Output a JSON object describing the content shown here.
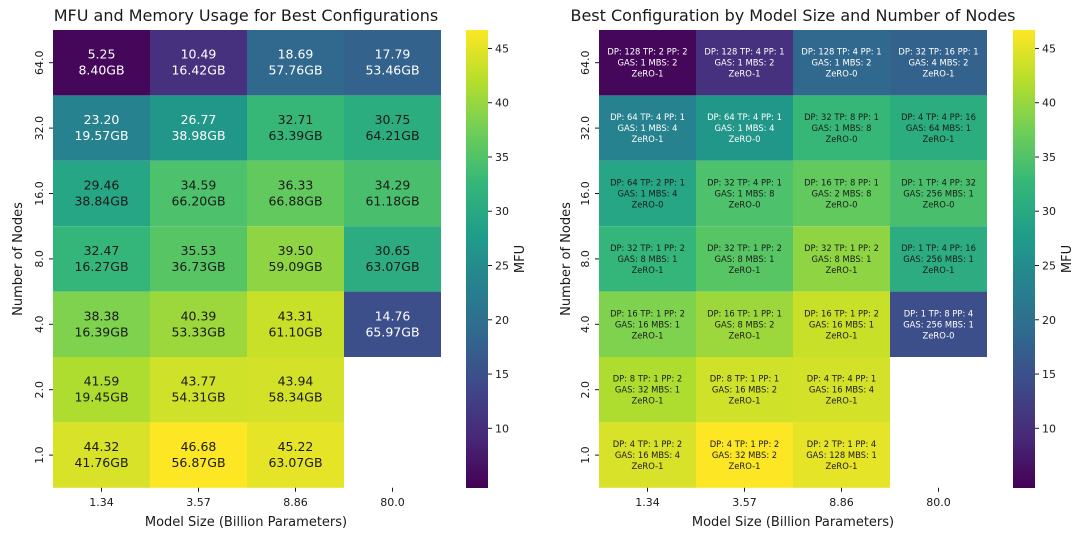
{
  "colors": {
    "viridis": [
      "#440154",
      "#482878",
      "#3e4989",
      "#31688e",
      "#26828e",
      "#1f9e89",
      "#35b779",
      "#6ece58",
      "#b5de2b",
      "#fde725"
    ],
    "text_dark": "#1a1a1a",
    "text_light": "#ffffff"
  },
  "chart_data": [
    {
      "type": "heatmap",
      "title": "MFU and Memory Usage for Best Configurations",
      "xlabel": "Model Size (Billion Parameters)",
      "ylabel": "Number of Nodes",
      "x_categories": [
        "1.34",
        "3.57",
        "8.86",
        "80.0"
      ],
      "y_categories": [
        "64.0",
        "32.0",
        "16.0",
        "8.0",
        "4.0",
        "2.0",
        "1.0"
      ],
      "colorbar": {
        "label": "MFU",
        "range": [
          4.5,
          46.7
        ],
        "ticks": [
          "10",
          "15",
          "20",
          "25",
          "30",
          "35",
          "40",
          "45"
        ]
      },
      "cells": [
        {
          "row": 0,
          "col": 0,
          "mfu": 5.25,
          "line1": "5.25",
          "line2": "8.40GB"
        },
        {
          "row": 0,
          "col": 1,
          "mfu": 10.49,
          "line1": "10.49",
          "line2": "16.42GB"
        },
        {
          "row": 0,
          "col": 2,
          "mfu": 18.69,
          "line1": "18.69",
          "line2": "57.76GB"
        },
        {
          "row": 0,
          "col": 3,
          "mfu": 17.79,
          "line1": "17.79",
          "line2": "53.46GB"
        },
        {
          "row": 1,
          "col": 0,
          "mfu": 23.2,
          "line1": "23.20",
          "line2": "19.57GB"
        },
        {
          "row": 1,
          "col": 1,
          "mfu": 26.77,
          "line1": "26.77",
          "line2": "38.98GB"
        },
        {
          "row": 1,
          "col": 2,
          "mfu": 32.71,
          "line1": "32.71",
          "line2": "63.39GB"
        },
        {
          "row": 1,
          "col": 3,
          "mfu": 30.75,
          "line1": "30.75",
          "line2": "64.21GB"
        },
        {
          "row": 2,
          "col": 0,
          "mfu": 29.46,
          "line1": "29.46",
          "line2": "38.84GB"
        },
        {
          "row": 2,
          "col": 1,
          "mfu": 34.59,
          "line1": "34.59",
          "line2": "66.20GB"
        },
        {
          "row": 2,
          "col": 2,
          "mfu": 36.33,
          "line1": "36.33",
          "line2": "66.88GB"
        },
        {
          "row": 2,
          "col": 3,
          "mfu": 34.29,
          "line1": "34.29",
          "line2": "61.18GB"
        },
        {
          "row": 3,
          "col": 0,
          "mfu": 32.47,
          "line1": "32.47",
          "line2": "16.27GB"
        },
        {
          "row": 3,
          "col": 1,
          "mfu": 35.53,
          "line1": "35.53",
          "line2": "36.73GB"
        },
        {
          "row": 3,
          "col": 2,
          "mfu": 39.5,
          "line1": "39.50",
          "line2": "59.09GB"
        },
        {
          "row": 3,
          "col": 3,
          "mfu": 30.65,
          "line1": "30.65",
          "line2": "63.07GB"
        },
        {
          "row": 4,
          "col": 0,
          "mfu": 38.38,
          "line1": "38.38",
          "line2": "16.39GB"
        },
        {
          "row": 4,
          "col": 1,
          "mfu": 40.39,
          "line1": "40.39",
          "line2": "53.33GB"
        },
        {
          "row": 4,
          "col": 2,
          "mfu": 43.31,
          "line1": "43.31",
          "line2": "61.10GB"
        },
        {
          "row": 4,
          "col": 3,
          "mfu": 14.76,
          "line1": "14.76",
          "line2": "65.97GB"
        },
        {
          "row": 5,
          "col": 0,
          "mfu": 41.59,
          "line1": "41.59",
          "line2": "19.45GB"
        },
        {
          "row": 5,
          "col": 1,
          "mfu": 43.77,
          "line1": "43.77",
          "line2": "54.31GB"
        },
        {
          "row": 5,
          "col": 2,
          "mfu": 43.94,
          "line1": "43.94",
          "line2": "58.34GB"
        },
        {
          "row": 6,
          "col": 0,
          "mfu": 44.32,
          "line1": "44.32",
          "line2": "41.76GB"
        },
        {
          "row": 6,
          "col": 1,
          "mfu": 46.68,
          "line1": "46.68",
          "line2": "56.87GB"
        },
        {
          "row": 6,
          "col": 2,
          "mfu": 45.22,
          "line1": "45.22",
          "line2": "63.07GB"
        }
      ]
    },
    {
      "type": "heatmap",
      "title": "Best Configuration by Model Size and Number of Nodes",
      "xlabel": "Model Size (Billion Parameters)",
      "ylabel": "Number of Nodes",
      "x_categories": [
        "1.34",
        "3.57",
        "8.86",
        "80.0"
      ],
      "y_categories": [
        "64.0",
        "32.0",
        "16.0",
        "8.0",
        "4.0",
        "2.0",
        "1.0"
      ],
      "colorbar": {
        "label": "MFU",
        "range": [
          4.5,
          46.7
        ],
        "ticks": [
          "10",
          "15",
          "20",
          "25",
          "30",
          "35",
          "40",
          "45"
        ]
      },
      "cells": [
        {
          "row": 0,
          "col": 0,
          "mfu": 5.25,
          "l1": "DP: 128  TP: 2   PP: 2",
          "l2": "GAS: 1   MBS: 2",
          "l3": "ZeRO-1"
        },
        {
          "row": 0,
          "col": 1,
          "mfu": 10.49,
          "l1": "DP: 128  TP: 4   PP: 1",
          "l2": "GAS: 1   MBS: 2",
          "l3": "ZeRO-1"
        },
        {
          "row": 0,
          "col": 2,
          "mfu": 18.69,
          "l1": "DP: 128  TP: 4   PP: 1",
          "l2": "GAS: 1   MBS: 2",
          "l3": "ZeRO-0"
        },
        {
          "row": 0,
          "col": 3,
          "mfu": 17.79,
          "l1": "DP: 32   TP: 16   PP: 1",
          "l2": "GAS: 4   MBS: 2",
          "l3": "ZeRO-1"
        },
        {
          "row": 1,
          "col": 0,
          "mfu": 23.2,
          "l1": "DP: 64   TP: 4   PP: 1",
          "l2": "GAS: 1   MBS: 4",
          "l3": "ZeRO-1"
        },
        {
          "row": 1,
          "col": 1,
          "mfu": 26.77,
          "l1": "DP: 64   TP: 4   PP: 1",
          "l2": "GAS: 1   MBS: 4",
          "l3": "ZeRO-0"
        },
        {
          "row": 1,
          "col": 2,
          "mfu": 32.71,
          "l1": "DP: 32   TP: 8   PP: 1",
          "l2": "GAS: 1   MBS: 8",
          "l3": "ZeRO-0"
        },
        {
          "row": 1,
          "col": 3,
          "mfu": 30.75,
          "l1": "DP: 4   TP: 4   PP: 16",
          "l2": "GAS: 64  MBS: 1",
          "l3": "ZeRO-1"
        },
        {
          "row": 2,
          "col": 0,
          "mfu": 29.46,
          "l1": "DP: 64   TP: 2   PP: 1",
          "l2": "GAS: 1   MBS: 4",
          "l3": "ZeRO-0"
        },
        {
          "row": 2,
          "col": 1,
          "mfu": 34.59,
          "l1": "DP: 32   TP: 4   PP: 1",
          "l2": "GAS: 1   MBS: 8",
          "l3": "ZeRO-0"
        },
        {
          "row": 2,
          "col": 2,
          "mfu": 36.33,
          "l1": "DP: 16   TP: 8   PP: 1",
          "l2": "GAS: 2   MBS: 8",
          "l3": "ZeRO-0"
        },
        {
          "row": 2,
          "col": 3,
          "mfu": 34.29,
          "l1": "DP: 1   TP: 4   PP: 32",
          "l2": "GAS: 256  MBS: 1",
          "l3": "ZeRO-0"
        },
        {
          "row": 3,
          "col": 0,
          "mfu": 32.47,
          "l1": "DP: 32   TP: 1   PP: 2",
          "l2": "GAS: 8   MBS: 1",
          "l3": "ZeRO-1"
        },
        {
          "row": 3,
          "col": 1,
          "mfu": 35.53,
          "l1": "DP: 32   TP: 1   PP: 2",
          "l2": "GAS: 8   MBS: 1",
          "l3": "ZeRO-1"
        },
        {
          "row": 3,
          "col": 2,
          "mfu": 39.5,
          "l1": "DP: 32   TP: 1   PP: 2",
          "l2": "GAS: 8   MBS: 1",
          "l3": "ZeRO-1"
        },
        {
          "row": 3,
          "col": 3,
          "mfu": 30.65,
          "l1": "DP: 1   TP: 4   PP: 16",
          "l2": "GAS: 256  MBS: 1",
          "l3": "ZeRO-1"
        },
        {
          "row": 4,
          "col": 0,
          "mfu": 38.38,
          "l1": "DP: 16   TP: 1   PP: 2",
          "l2": "GAS: 16   MBS: 1",
          "l3": "ZeRO-1"
        },
        {
          "row": 4,
          "col": 1,
          "mfu": 40.39,
          "l1": "DP: 16   TP: 1   PP: 1",
          "l2": "GAS: 8   MBS: 2",
          "l3": "ZeRO-1"
        },
        {
          "row": 4,
          "col": 2,
          "mfu": 43.31,
          "l1": "DP: 16   TP: 1   PP: 2",
          "l2": "GAS: 16   MBS: 1",
          "l3": "ZeRO-1"
        },
        {
          "row": 4,
          "col": 3,
          "mfu": 14.76,
          "l1": "DP: 1   TP: 8   PP: 4",
          "l2": "GAS: 256  MBS: 1",
          "l3": "ZeRO-0"
        },
        {
          "row": 5,
          "col": 0,
          "mfu": 41.59,
          "l1": "DP: 8   TP: 1   PP: 2",
          "l2": "GAS: 32   MBS: 1",
          "l3": "ZeRO-1"
        },
        {
          "row": 5,
          "col": 1,
          "mfu": 43.77,
          "l1": "DP: 8   TP: 1   PP: 1",
          "l2": "GAS: 16   MBS: 2",
          "l3": "ZeRO-1"
        },
        {
          "row": 5,
          "col": 2,
          "mfu": 43.94,
          "l1": "DP: 4   TP: 4   PP: 1",
          "l2": "GAS: 16   MBS: 4",
          "l3": "ZeRO-1"
        },
        {
          "row": 6,
          "col": 0,
          "mfu": 44.32,
          "l1": "DP: 4   TP: 1   PP: 2",
          "l2": "GAS: 16   MBS: 4",
          "l3": "ZeRO-1"
        },
        {
          "row": 6,
          "col": 1,
          "mfu": 46.68,
          "l1": "DP: 4   TP: 1   PP: 2",
          "l2": "GAS: 32   MBS: 2",
          "l3": "ZeRO-1"
        },
        {
          "row": 6,
          "col": 2,
          "mfu": 45.22,
          "l1": "DP: 2   TP: 1   PP: 4",
          "l2": "GAS: 128  MBS: 1",
          "l3": "ZeRO-1"
        }
      ]
    }
  ]
}
